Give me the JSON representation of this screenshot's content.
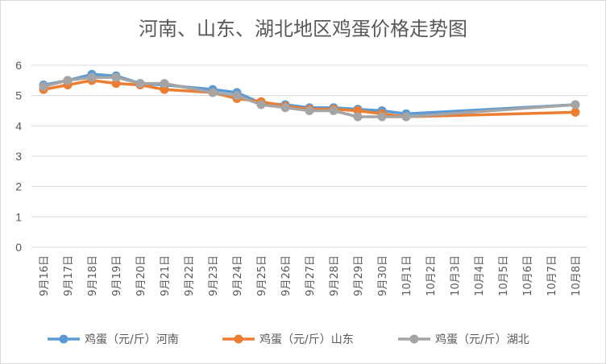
{
  "chart_data": {
    "type": "line",
    "title": "河南、山东、湖北地区鸡蛋价格走势图",
    "xlabel": "",
    "ylabel": "",
    "ylim": [
      0,
      6
    ],
    "yticks": [
      0,
      1,
      2,
      3,
      4,
      5,
      6
    ],
    "grid": "horizontal",
    "legend_position": "bottom",
    "categories": [
      "9月16日",
      "9月17日",
      "9月18日",
      "9月19日",
      "9月20日",
      "9月21日",
      "9月22日",
      "9月23日",
      "9月24日",
      "9月25日",
      "9月26日",
      "9月27日",
      "9月28日",
      "9月29日",
      "9月30日",
      "10月1日",
      "10月2日",
      "10月3日",
      "10月4日",
      "10月5日",
      "10月6日",
      "10月7日",
      "10月8日"
    ],
    "series": [
      {
        "name": "鸡蛋（元/斤）河南",
        "color": "#5b9bd5",
        "values": [
          5.35,
          5.5,
          5.7,
          5.65,
          5.4,
          5.35,
          null,
          5.2,
          5.1,
          4.75,
          4.7,
          4.6,
          4.6,
          4.55,
          4.5,
          4.4,
          null,
          null,
          null,
          null,
          null,
          null,
          4.7
        ]
      },
      {
        "name": "鸡蛋（元/斤）山东",
        "color": "#ed7d31",
        "values": [
          5.2,
          5.35,
          5.5,
          5.4,
          5.35,
          5.2,
          null,
          5.1,
          4.9,
          4.8,
          4.65,
          4.55,
          4.55,
          4.5,
          4.4,
          4.3,
          null,
          null,
          null,
          null,
          null,
          null,
          4.45
        ]
      },
      {
        "name": "鸡蛋（元/斤）湖北",
        "color": "#a5a5a5",
        "values": [
          5.3,
          5.5,
          5.6,
          5.6,
          5.4,
          5.4,
          null,
          5.1,
          5.0,
          4.7,
          4.6,
          4.5,
          4.5,
          4.3,
          4.3,
          4.3,
          null,
          null,
          null,
          null,
          null,
          null,
          4.7
        ]
      }
    ]
  }
}
